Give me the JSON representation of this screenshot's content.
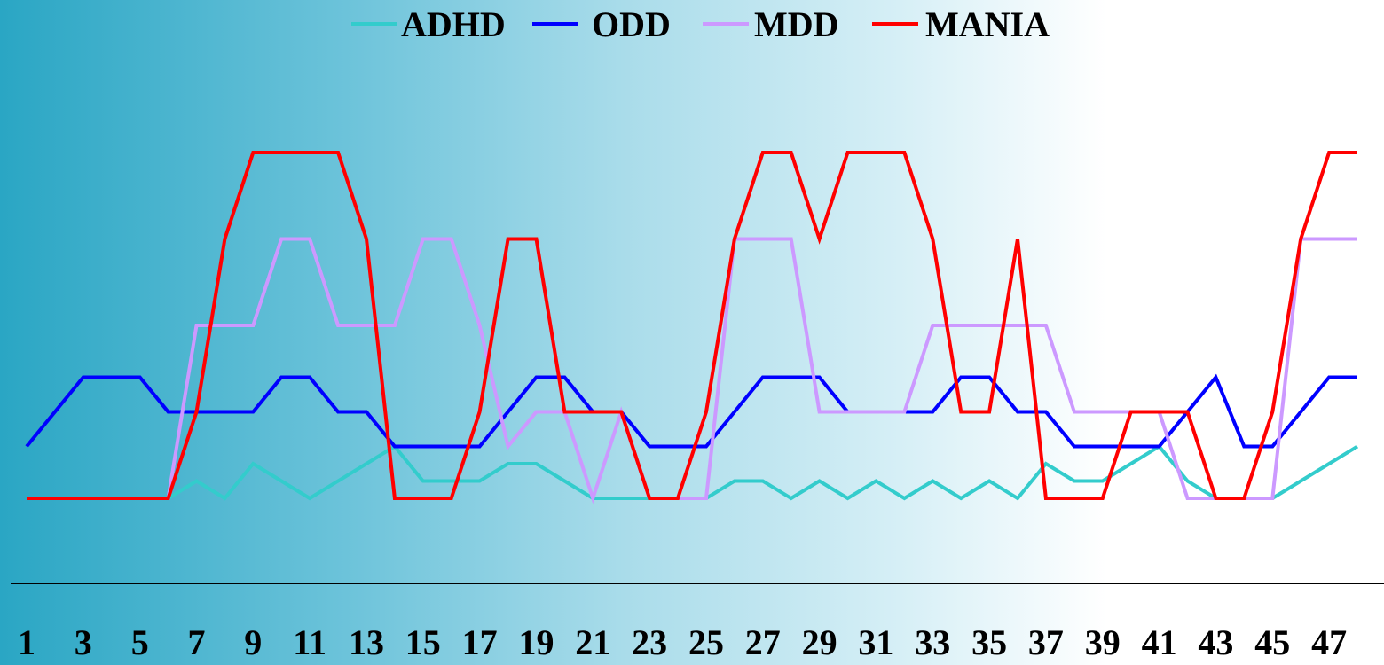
{
  "chart_data": {
    "type": "line",
    "title": "",
    "xlabel": "",
    "ylabel": "",
    "x": [
      1,
      2,
      3,
      4,
      5,
      6,
      7,
      8,
      9,
      10,
      11,
      12,
      13,
      14,
      15,
      16,
      17,
      18,
      19,
      20,
      21,
      22,
      23,
      24,
      25,
      26,
      27,
      28,
      29,
      30,
      31,
      32,
      33,
      34,
      35,
      36,
      37,
      38,
      39,
      40,
      41,
      42,
      43,
      44,
      45,
      46,
      47,
      48
    ],
    "x_tick_labels": [
      "1",
      "3",
      "5",
      "7",
      "9",
      "11",
      "13",
      "15",
      "17",
      "19",
      "21",
      "23",
      "25",
      "27",
      "29",
      "31",
      "33",
      "35",
      "37",
      "39",
      "41",
      "43",
      "45",
      "47"
    ],
    "ylim": [
      -1,
      5
    ],
    "grid": false,
    "legend_position": "top",
    "series": [
      {
        "name": "ADHD",
        "color": "#33cccc",
        "values": [
          0,
          0,
          0,
          0,
          0,
          0,
          0.2,
          0,
          0.4,
          0.2,
          0,
          0.2,
          0.4,
          0.6,
          0.2,
          0.2,
          0.2,
          0.4,
          0.4,
          0.2,
          0,
          0,
          0,
          0,
          0,
          0.2,
          0.2,
          0,
          0.2,
          0,
          0.2,
          0,
          0.2,
          0,
          0.2,
          0,
          0.4,
          0.2,
          0.2,
          0.4,
          0.6,
          0.2,
          0,
          0,
          0,
          0.2,
          0.4,
          0.6
        ]
      },
      {
        "name": "ODD",
        "color": "#0000ff",
        "values": [
          0.6,
          1,
          1.4,
          1.4,
          1.4,
          1,
          1,
          1,
          1,
          1.4,
          1.4,
          1,
          1,
          0.6,
          0.6,
          0.6,
          0.6,
          1,
          1.4,
          1.4,
          1,
          1,
          0.6,
          0.6,
          0.6,
          1,
          1.4,
          1.4,
          1.4,
          1,
          1,
          1,
          1,
          1.4,
          1.4,
          1,
          1,
          0.6,
          0.6,
          0.6,
          0.6,
          1,
          1.4,
          0.6,
          0.6,
          1,
          1.4,
          1.4
        ]
      },
      {
        "name": "MDD",
        "color": "#cc99ff",
        "values": [
          0,
          0,
          0,
          0,
          0,
          0,
          2,
          2,
          2,
          3,
          3,
          2,
          2,
          2,
          3,
          3,
          2,
          0.6,
          1,
          1,
          0,
          1,
          0,
          0,
          0,
          3,
          3,
          3,
          1,
          1,
          1,
          1,
          2,
          2,
          2,
          2,
          2,
          1,
          1,
          1,
          1,
          0,
          0,
          0,
          0,
          3,
          3,
          3
        ]
      },
      {
        "name": "MANIA",
        "color": "#ff0000",
        "values": [
          0,
          0,
          0,
          0,
          0,
          0,
          1,
          3,
          4,
          4,
          4,
          4,
          3,
          0,
          0,
          0,
          1,
          3,
          3,
          1,
          1,
          1,
          0,
          0,
          1,
          3,
          4,
          4,
          3,
          4,
          4,
          4,
          3,
          1,
          1,
          3,
          0,
          0,
          0,
          1,
          1,
          1,
          0,
          0,
          1,
          3,
          4,
          4
        ]
      }
    ]
  }
}
